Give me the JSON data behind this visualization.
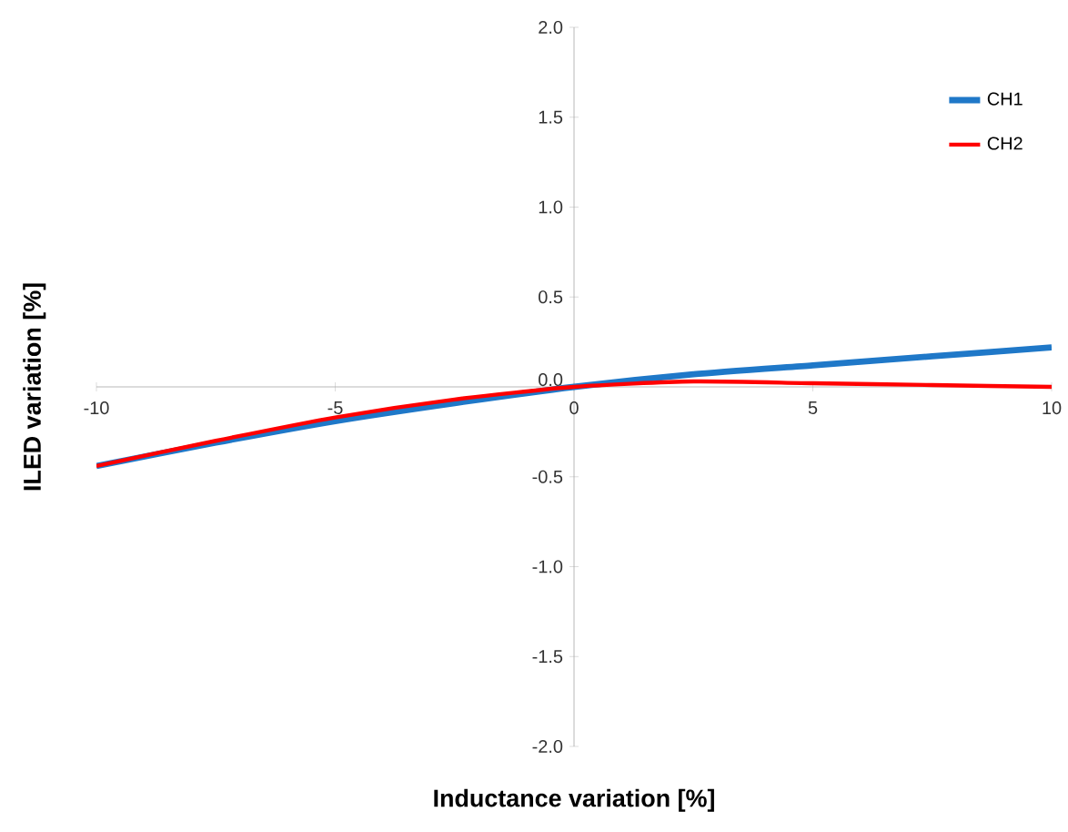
{
  "chart_data": {
    "type": "line",
    "xlabel": "Inductance variation [%]",
    "ylabel": "ILED variation [%]",
    "x": [
      -10,
      -7.5,
      -5,
      -2.5,
      0,
      2.5,
      5,
      7.5,
      10
    ],
    "series": [
      {
        "name": "CH1",
        "color": "#1f78c8",
        "values": [
          -0.44,
          -0.31,
          -0.19,
          -0.09,
          0,
          0.07,
          0.12,
          0.17,
          0.22
        ]
      },
      {
        "name": "CH2",
        "color": "#ff0000",
        "values": [
          -0.44,
          -0.3,
          -0.17,
          -0.07,
          0,
          0.03,
          0.02,
          0.01,
          0.0
        ]
      }
    ],
    "xlim": [
      -10,
      10
    ],
    "ylim": [
      -2,
      2
    ],
    "xticks": [
      -10,
      -5,
      0,
      5,
      10
    ],
    "yticks": [
      {
        "value": -2,
        "label": "-2.0"
      },
      {
        "value": -1.5,
        "label": "-1.5"
      },
      {
        "value": -1,
        "label": "-1.0"
      },
      {
        "value": -0.5,
        "label": "-0.5"
      },
      {
        "value": 0,
        "label": "0.0"
      },
      {
        "value": 0.5,
        "label": "0.5"
      },
      {
        "value": 1,
        "label": "1.0"
      },
      {
        "value": 1.5,
        "label": "1.5"
      },
      {
        "value": 2,
        "label": "2.0"
      }
    ],
    "legend": "top right",
    "grid": false,
    "marker": "none",
    "line_style": "solid"
  }
}
